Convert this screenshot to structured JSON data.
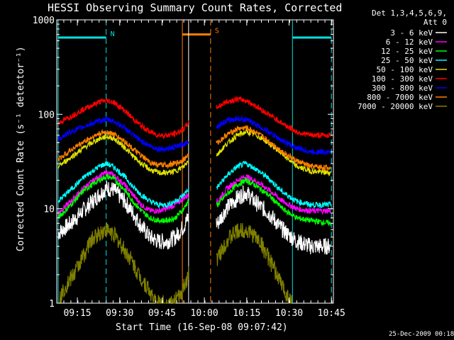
{
  "chart_data": {
    "type": "line",
    "title": "HESSI Observing Summary Count Rates, Corrected",
    "xlabel": "Start Time (16-Sep-08 09:07:42)",
    "ylabel": "Corrected Count Rate (s⁻¹ detector⁻¹)",
    "footer": "25-Dec-2009 00:18",
    "y_scale": "log",
    "ylim": [
      1,
      1000
    ],
    "xlim_minutes": [
      0,
      98
    ],
    "x_ticks": [
      {
        "m": 7.3,
        "label": "09:15"
      },
      {
        "m": 22.3,
        "label": "09:30"
      },
      {
        "m": 37.3,
        "label": "09:45"
      },
      {
        "m": 52.3,
        "label": "10:00"
      },
      {
        "m": 67.3,
        "label": "10:15"
      },
      {
        "m": 82.3,
        "label": "10:30"
      },
      {
        "m": 97.3,
        "label": "10:45"
      }
    ],
    "y_ticks": [
      {
        "v": 1,
        "label": "1"
      },
      {
        "v": 10,
        "label": "10"
      },
      {
        "v": 100,
        "label": "100"
      },
      {
        "v": 1000,
        "label": "1000"
      }
    ],
    "legend_header": [
      "Det 1,3,4,5,6,9,",
      "Att 0"
    ],
    "legend_position": "right",
    "series": [
      {
        "name": "3 - 6 keV",
        "color": "#ffffff",
        "x": [
          0.5,
          5,
          10,
          15,
          17.5,
          20,
          24,
          27,
          30,
          33,
          36,
          39,
          42,
          45,
          46.5,
          57,
          60,
          64,
          67,
          70,
          75,
          80,
          85,
          90,
          97
        ],
        "y": [
          5.5,
          7,
          10,
          14,
          16.5,
          16,
          12,
          9,
          6.5,
          5,
          4.5,
          4.5,
          5,
          6.5,
          8,
          7,
          10,
          13,
          15,
          12,
          9,
          6,
          4.5,
          4,
          4
        ]
      },
      {
        "name": "6 - 12 keV",
        "color": "#ff00ff",
        "x": [
          0.5,
          5,
          10,
          15,
          17.5,
          20,
          24,
          27,
          30,
          33,
          36,
          39,
          42,
          45,
          46.5,
          57,
          60,
          64,
          67,
          70,
          75,
          80,
          85,
          90,
          97
        ],
        "y": [
          9,
          12,
          17,
          22,
          24,
          23,
          18,
          14,
          11,
          9.5,
          9.5,
          10,
          11,
          13,
          14,
          12,
          16,
          20,
          22,
          20,
          16,
          12,
          10,
          9.5,
          9.5
        ]
      },
      {
        "name": "12 - 25 keV",
        "color": "#00ff00",
        "x": [
          0.5,
          5,
          10,
          15,
          17.5,
          20,
          24,
          27,
          30,
          33,
          36,
          39,
          42,
          45,
          46.5,
          57,
          60,
          64,
          67,
          70,
          75,
          80,
          85,
          90,
          97
        ],
        "y": [
          8,
          11,
          16,
          20,
          22,
          21,
          16,
          12,
          9.5,
          8,
          7.5,
          7.5,
          8,
          10,
          12,
          11,
          14,
          18,
          20,
          18,
          14,
          10,
          8,
          7.5,
          7
        ]
      },
      {
        "name": "25 - 50 keV",
        "color": "#00ffff",
        "x": [
          0.5,
          5,
          10,
          15,
          17.5,
          20,
          24,
          27,
          30,
          33,
          36,
          39,
          42,
          45,
          46.5,
          57,
          60,
          64,
          67,
          70,
          75,
          80,
          85,
          90,
          97
        ],
        "y": [
          12,
          16,
          22,
          28,
          30,
          28,
          22,
          17,
          14,
          12,
          11,
          11,
          12,
          14,
          16,
          17,
          22,
          28,
          30,
          27,
          21,
          15,
          12,
          11,
          11
        ]
      },
      {
        "name": "50 - 100 keV",
        "color": "#e0e000",
        "x": [
          0.5,
          5,
          10,
          15,
          17.5,
          20,
          24,
          27,
          30,
          33,
          36,
          39,
          42,
          45,
          46.5,
          57,
          60,
          64,
          67,
          70,
          75,
          80,
          85,
          90,
          97
        ],
        "y": [
          28,
          35,
          45,
          55,
          58,
          56,
          45,
          36,
          30,
          26,
          24,
          24,
          25,
          28,
          32,
          38,
          48,
          60,
          65,
          62,
          50,
          38,
          28,
          25,
          24
        ]
      },
      {
        "name": "100 - 300 keV",
        "color": "#ff0000",
        "x": [
          0.5,
          5,
          10,
          15,
          17.5,
          20,
          24,
          27,
          30,
          33,
          36,
          39,
          42,
          45,
          46.5,
          57,
          60,
          64,
          67,
          70,
          75,
          80,
          85,
          90,
          97
        ],
        "y": [
          80,
          95,
          115,
          135,
          140,
          135,
          110,
          90,
          75,
          65,
          60,
          60,
          62,
          70,
          80,
          120,
          135,
          145,
          140,
          125,
          100,
          80,
          65,
          60,
          60
        ]
      },
      {
        "name": "300 - 800 keV",
        "color": "#0000ff",
        "x": [
          0.5,
          5,
          10,
          15,
          17.5,
          20,
          24,
          27,
          30,
          33,
          36,
          39,
          42,
          45,
          46.5,
          57,
          60,
          64,
          67,
          70,
          75,
          80,
          85,
          90,
          97
        ],
        "y": [
          55,
          65,
          75,
          85,
          88,
          85,
          72,
          60,
          52,
          46,
          43,
          43,
          45,
          48,
          52,
          75,
          85,
          90,
          88,
          80,
          65,
          52,
          44,
          40,
          40
        ]
      },
      {
        "name": "800 - 7000 keV",
        "color": "#ff8000",
        "x": [
          0.5,
          5,
          10,
          15,
          17.5,
          20,
          24,
          27,
          30,
          33,
          36,
          39,
          42,
          45,
          46.5,
          57,
          60,
          64,
          67,
          70,
          75,
          80,
          85,
          90,
          97
        ],
        "y": [
          33,
          42,
          52,
          62,
          65,
          62,
          52,
          43,
          36,
          31,
          29,
          29,
          30,
          33,
          37,
          50,
          60,
          70,
          72,
          66,
          52,
          40,
          32,
          28,
          27
        ]
      },
      {
        "name": "7000 - 20000 keV",
        "color": "#808000",
        "x": [
          0.5,
          3,
          6,
          9,
          12,
          15,
          17.5,
          20,
          23,
          26,
          29,
          32,
          35,
          38,
          41,
          44,
          46.5,
          57,
          60,
          63,
          66,
          69,
          72,
          75,
          78,
          81,
          83.5
        ],
        "y": [
          1,
          1.5,
          2,
          3,
          4.5,
          5.5,
          6,
          5.5,
          4,
          3,
          2,
          1.5,
          1,
          1,
          1,
          1.2,
          2,
          3,
          4.5,
          5.5,
          6,
          5.5,
          4.5,
          3,
          2,
          1.3,
          1
        ]
      }
    ],
    "annotations": [
      {
        "label": "N",
        "color": "#00e0e0",
        "x1": 0.5,
        "x2": 17.5,
        "level": 650,
        "dash_x": 17.5,
        "x3": 83.5,
        "x4": 97.3,
        "dash_x2": 97.3
      },
      {
        "label": "S",
        "color": "#ff8000",
        "x1": 44.5,
        "x2": 54.5,
        "level": 700,
        "dash_x": 54.5
      }
    ],
    "gaps": [
      {
        "x1": 46.7,
        "x2": 56.5,
        "note": "data gap"
      }
    ]
  },
  "colors": {
    "background": "#000000",
    "axis": "#ffffff",
    "cyan": "#00e0e0",
    "orange": "#ff8000"
  }
}
